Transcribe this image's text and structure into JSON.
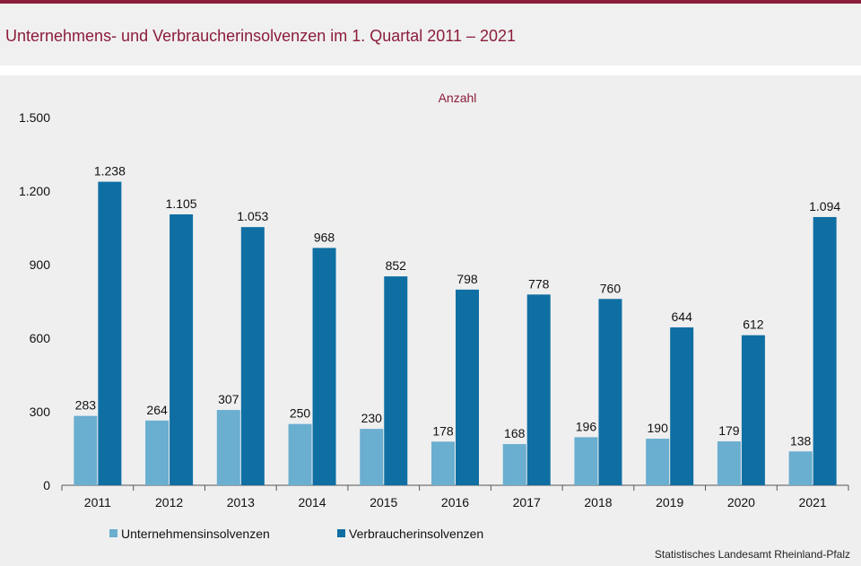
{
  "title": "Unternehmens- und Verbraucherinsolvenzen im 1. Quartal 2011 – 2021",
  "source": "Statistisches Landesamt Rheinland-Pfalz",
  "colors": {
    "accent": "#8c1d3a",
    "unternehmen": "#6aaed0",
    "verbraucher": "#0f6fa3"
  },
  "chart_data": {
    "type": "bar",
    "unit_label": "Anzahl",
    "categories": [
      "2011",
      "2012",
      "2013",
      "2014",
      "2015",
      "2016",
      "2017",
      "2018",
      "2019",
      "2020",
      "2021"
    ],
    "series": [
      {
        "name": "Unternehmensinsolvenzen",
        "values": [
          283,
          264,
          307,
          250,
          230,
          178,
          168,
          196,
          190,
          179,
          138
        ],
        "labels": [
          "283",
          "264",
          "307",
          "250",
          "230",
          "178",
          "168",
          "196",
          "190",
          "179",
          "138"
        ]
      },
      {
        "name": "Verbraucherinsolvenzen",
        "values": [
          1238,
          1105,
          1053,
          968,
          852,
          798,
          778,
          760,
          644,
          612,
          1094
        ],
        "labels": [
          "1.238",
          "1.105",
          "1.053",
          "968",
          "852",
          "798",
          "778",
          "760",
          "644",
          "612",
          "1.094"
        ]
      }
    ],
    "ylim": [
      0,
      1500
    ],
    "yticks": [
      0,
      300,
      600,
      900,
      1200,
      1500
    ],
    "ytick_labels": [
      "0",
      "300",
      "600",
      "900",
      "1.200",
      "1.500"
    ],
    "legend_position": "bottom-left",
    "grid": false
  }
}
